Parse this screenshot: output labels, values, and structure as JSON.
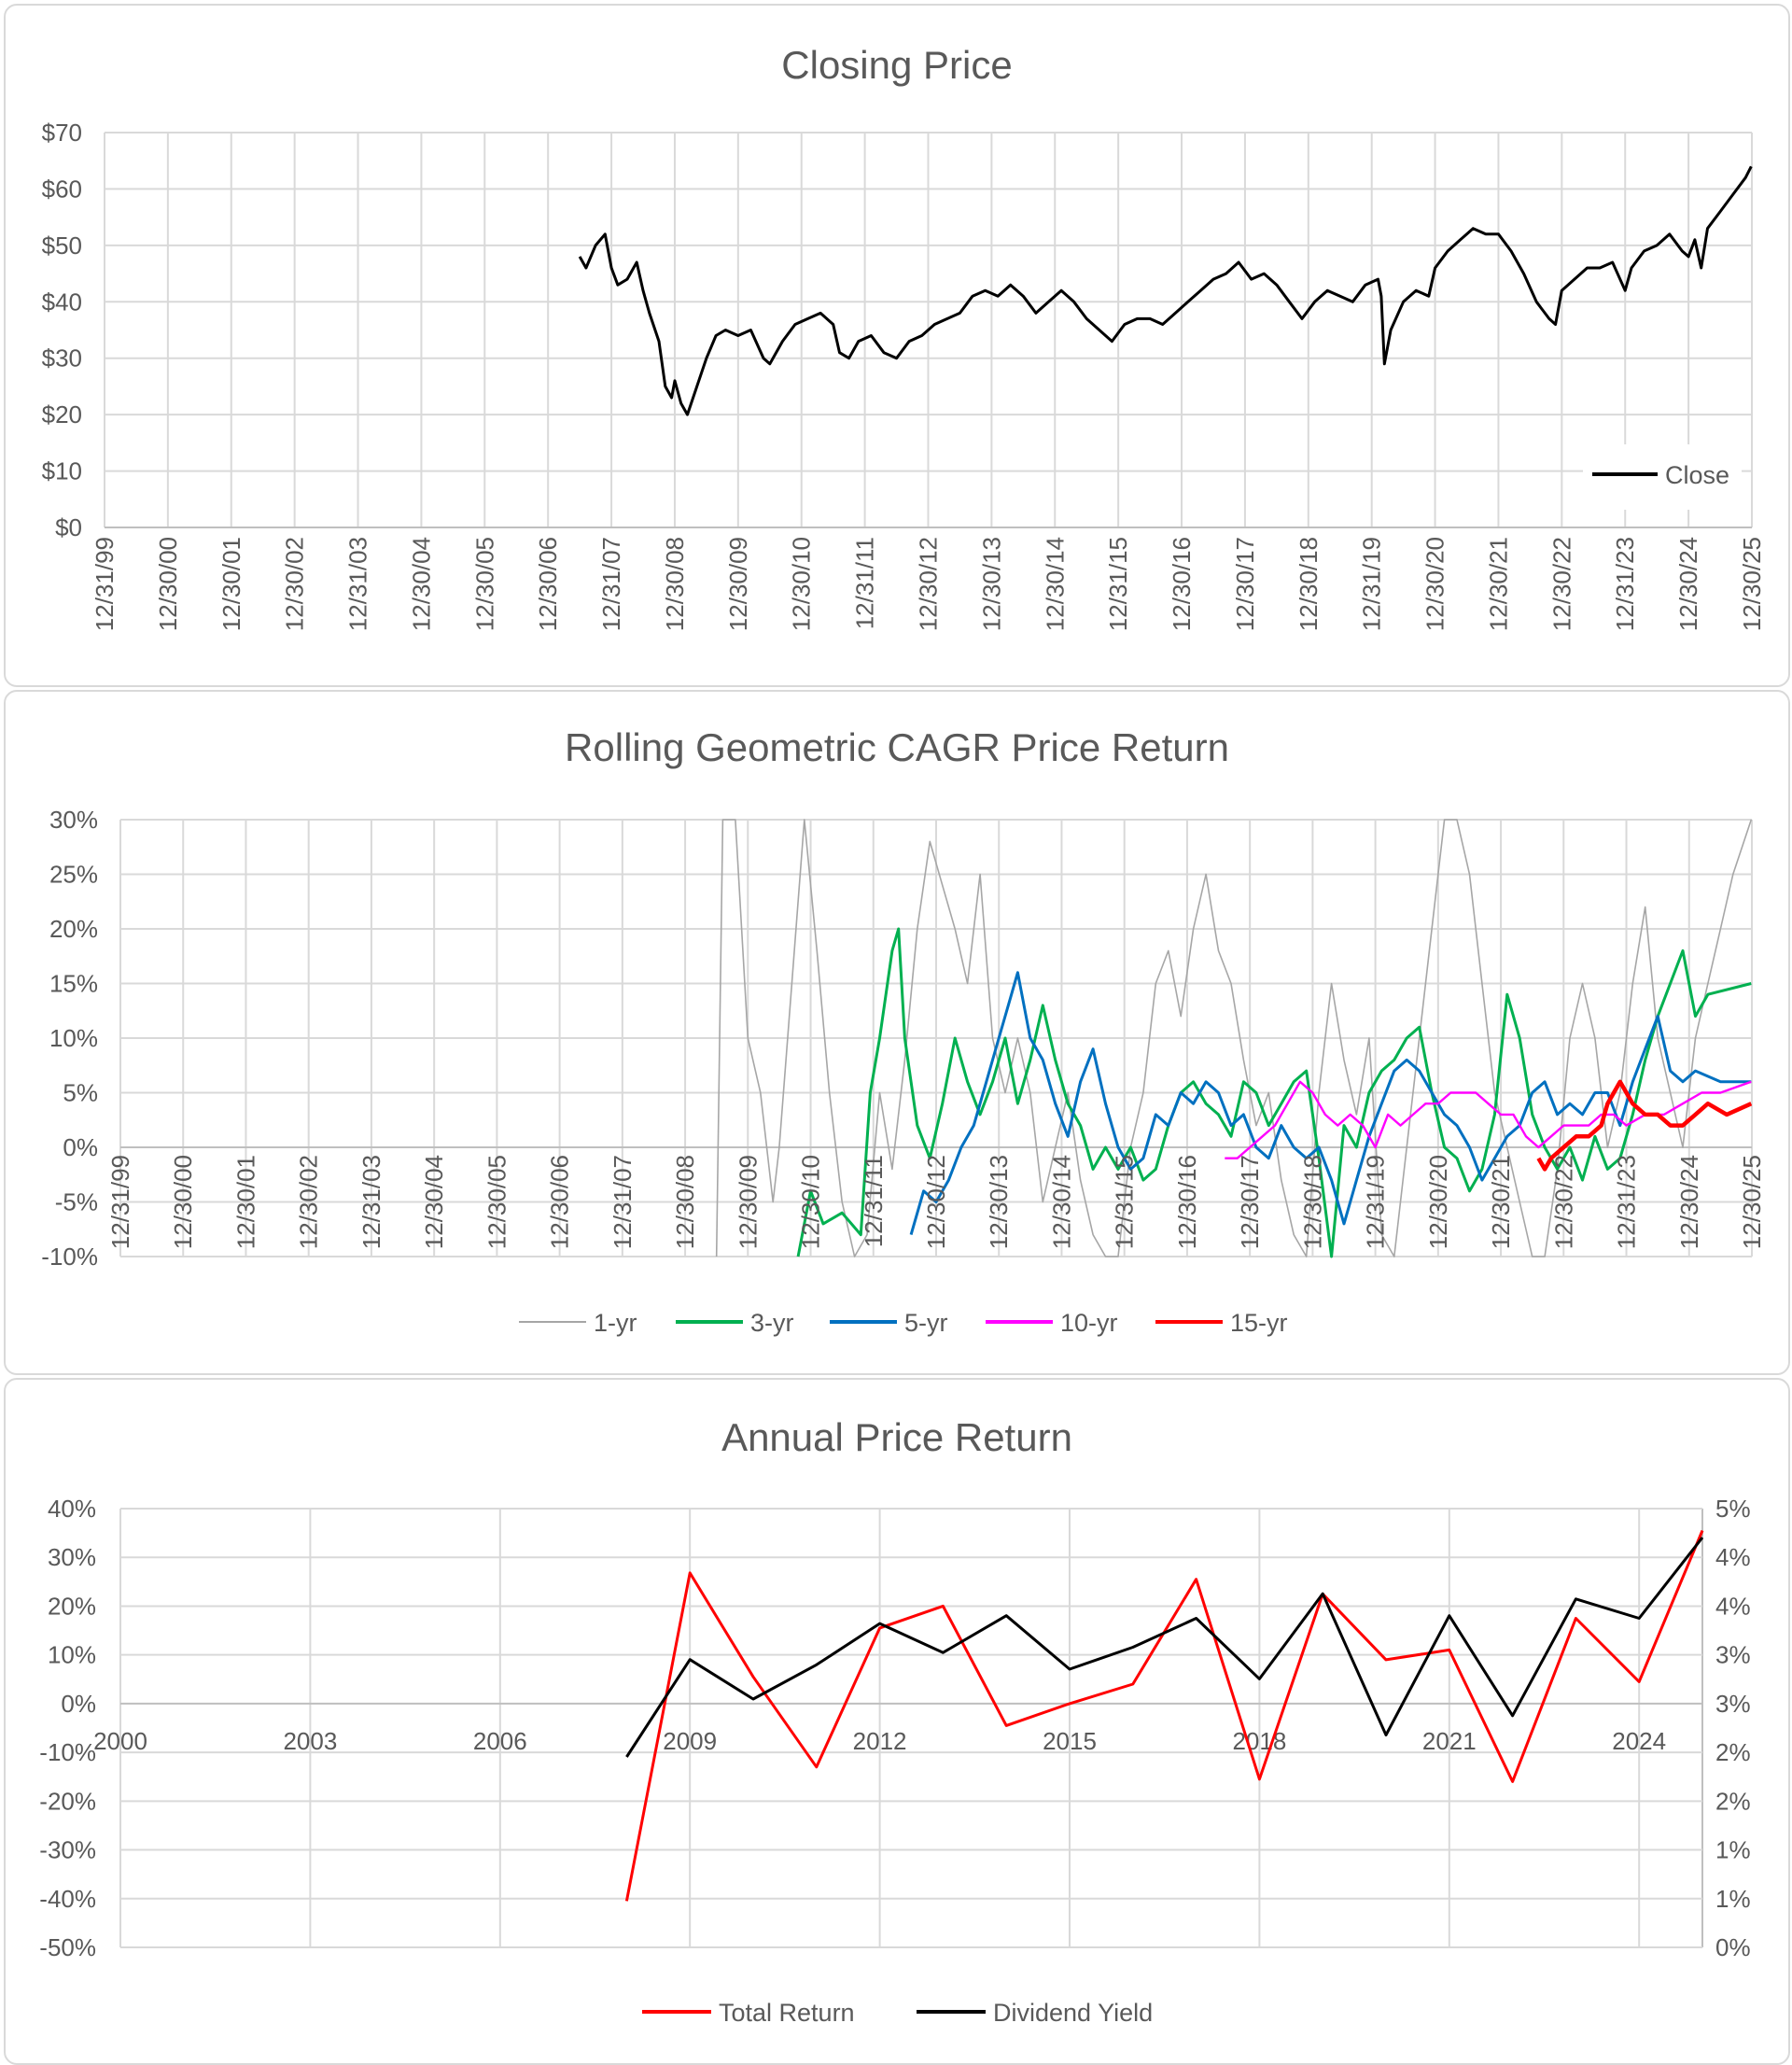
{
  "chart_data": [
    {
      "type": "line",
      "title": "Closing Price",
      "xlabel": "",
      "ylabel": "",
      "xlim": [
        "12/31/99",
        "12/30/25"
      ],
      "x_tick_labels": [
        "12/31/99",
        "12/30/00",
        "12/30/01",
        "12/30/02",
        "12/31/03",
        "12/30/04",
        "12/30/05",
        "12/30/06",
        "12/31/07",
        "12/30/08",
        "12/30/09",
        "12/30/10",
        "12/31/11",
        "12/30/12",
        "12/30/13",
        "12/30/14",
        "12/31/15",
        "12/30/16",
        "12/30/17",
        "12/30/18",
        "12/31/19",
        "12/30/20",
        "12/30/21",
        "12/30/22",
        "12/31/23",
        "12/30/24",
        "12/30/25"
      ],
      "ylim": [
        0,
        70
      ],
      "y_tick_labels": [
        "$0",
        "$10",
        "$20",
        "$30",
        "$40",
        "$50",
        "$60",
        "$70"
      ],
      "grid": true,
      "legend": "bottom-right",
      "series": [
        {
          "name": "Close",
          "color": "#000000",
          "x": [
            2007.5,
            2007.6,
            2007.75,
            2007.9,
            2008.0,
            2008.1,
            2008.25,
            2008.4,
            2008.5,
            2008.6,
            2008.75,
            2008.85,
            2008.95,
            2009.0,
            2009.1,
            2009.2,
            2009.35,
            2009.5,
            2009.65,
            2009.8,
            2010.0,
            2010.2,
            2010.4,
            2010.5,
            2010.7,
            2010.9,
            2011.1,
            2011.3,
            2011.5,
            2011.6,
            2011.75,
            2011.9,
            2012.1,
            2012.3,
            2012.5,
            2012.7,
            2012.9,
            2013.1,
            2013.3,
            2013.5,
            2013.7,
            2013.9,
            2014.1,
            2014.3,
            2014.5,
            2014.7,
            2014.9,
            2015.1,
            2015.3,
            2015.5,
            2015.7,
            2015.9,
            2016.1,
            2016.3,
            2016.5,
            2016.7,
            2016.9,
            2017.1,
            2017.3,
            2017.5,
            2017.7,
            2017.9,
            2018.1,
            2018.3,
            2018.5,
            2018.7,
            2018.9,
            2019.1,
            2019.3,
            2019.5,
            2019.7,
            2019.9,
            2020.1,
            2020.15,
            2020.2,
            2020.3,
            2020.5,
            2020.7,
            2020.9,
            2021.0,
            2021.2,
            2021.4,
            2021.6,
            2021.8,
            2022.0,
            2022.2,
            2022.4,
            2022.6,
            2022.8,
            2022.9,
            2023.0,
            2023.2,
            2023.4,
            2023.6,
            2023.8,
            2024.0,
            2024.1,
            2024.3,
            2024.5,
            2024.7,
            2024.9,
            2025.0,
            2025.1,
            2025.2,
            2025.3,
            2025.5,
            2025.7,
            2025.9,
            2025.99
          ],
          "y": [
            48,
            46,
            50,
            52,
            46,
            43,
            44,
            47,
            42,
            38,
            33,
            25,
            23,
            26,
            22,
            20,
            25,
            30,
            34,
            35,
            34,
            35,
            30,
            29,
            33,
            36,
            37,
            38,
            36,
            31,
            30,
            33,
            34,
            31,
            30,
            33,
            34,
            36,
            37,
            38,
            41,
            42,
            41,
            43,
            41,
            38,
            40,
            42,
            40,
            37,
            35,
            33,
            36,
            37,
            37,
            36,
            38,
            40,
            42,
            44,
            45,
            47,
            44,
            45,
            43,
            40,
            37,
            40,
            42,
            41,
            40,
            43,
            44,
            41,
            29,
            35,
            40,
            42,
            41,
            46,
            49,
            51,
            53,
            52,
            52,
            49,
            45,
            40,
            37,
            36,
            42,
            44,
            46,
            46,
            47,
            42,
            46,
            49,
            50,
            52,
            49,
            48,
            51,
            46,
            53,
            56,
            59,
            62,
            64
          ]
        }
      ]
    },
    {
      "type": "line",
      "title": "Rolling Geometric CAGR Price Return",
      "xlabel": "",
      "ylabel": "",
      "xlim": [
        "12/31/99",
        "12/30/25"
      ],
      "x_tick_labels": [
        "12/31/99",
        "12/30/00",
        "12/30/01",
        "12/30/02",
        "12/31/03",
        "12/30/04",
        "12/30/05",
        "12/30/06",
        "12/31/07",
        "12/30/08",
        "12/30/09",
        "12/30/10",
        "12/31/11",
        "12/30/12",
        "12/30/13",
        "12/30/14",
        "12/31/15",
        "12/30/16",
        "12/30/17",
        "12/30/18",
        "12/31/19",
        "12/30/20",
        "12/30/21",
        "12/30/22",
        "12/31/23",
        "12/30/24",
        "12/30/25"
      ],
      "ylim": [
        -10,
        30
      ],
      "y_tick_labels": [
        "-10%",
        "-5%",
        "0%",
        "5%",
        "10%",
        "15%",
        "20%",
        "25%",
        "30%"
      ],
      "grid": true,
      "legend": "bottom",
      "series": [
        {
          "name": "1-yr",
          "color": "#a6a6a6",
          "x": [
            2009.5,
            2009.6,
            2009.8,
            2009.9,
            2010.0,
            2010.2,
            2010.4,
            2010.5,
            2010.7,
            2010.9,
            2011.1,
            2011.3,
            2011.5,
            2011.7,
            2011.9,
            2012.1,
            2012.3,
            2012.5,
            2012.7,
            2012.9,
            2013.1,
            2013.3,
            2013.5,
            2013.7,
            2013.9,
            2014.1,
            2014.3,
            2014.5,
            2014.7,
            2014.9,
            2015.1,
            2015.3,
            2015.5,
            2015.7,
            2015.9,
            2016.1,
            2016.3,
            2016.5,
            2016.7,
            2016.9,
            2017.1,
            2017.3,
            2017.5,
            2017.7,
            2017.9,
            2018.1,
            2018.3,
            2018.5,
            2018.7,
            2018.9,
            2019.1,
            2019.3,
            2019.5,
            2019.7,
            2019.9,
            2020.1,
            2020.3,
            2020.5,
            2020.7,
            2020.9,
            2021.1,
            2021.3,
            2021.5,
            2021.7,
            2021.9,
            2022.1,
            2022.3,
            2022.5,
            2022.7,
            2022.9,
            2023.1,
            2023.3,
            2023.5,
            2023.7,
            2023.9,
            2024.1,
            2024.3,
            2024.5,
            2024.7,
            2024.9,
            2025.1,
            2025.3,
            2025.5,
            2025.7,
            2025.99
          ],
          "y": [
            -10,
            30,
            30,
            20,
            10,
            5,
            -5,
            0,
            15,
            30,
            18,
            5,
            -5,
            -10,
            -8,
            5,
            -2,
            8,
            20,
            28,
            24,
            20,
            15,
            25,
            10,
            5,
            10,
            5,
            -5,
            0,
            5,
            -3,
            -8,
            -10,
            -10,
            0,
            5,
            15,
            18,
            12,
            20,
            25,
            18,
            15,
            8,
            2,
            5,
            -3,
            -8,
            -10,
            5,
            15,
            8,
            3,
            10,
            -8,
            -10,
            0,
            10,
            20,
            30,
            30,
            25,
            15,
            5,
            0,
            -5,
            -10,
            -10,
            -2,
            10,
            15,
            10,
            0,
            5,
            15,
            22,
            10,
            5,
            0,
            10,
            15,
            20,
            25,
            30
          ]
        },
        {
          "name": "3-yr",
          "color": "#00b050",
          "x": [
            2010.8,
            2011.0,
            2011.2,
            2011.5,
            2011.8,
            2011.95,
            2012.1,
            2012.3,
            2012.4,
            2012.5,
            2012.7,
            2012.9,
            2013.1,
            2013.3,
            2013.5,
            2013.7,
            2013.9,
            2014.1,
            2014.3,
            2014.5,
            2014.7,
            2014.9,
            2015.1,
            2015.3,
            2015.5,
            2015.7,
            2015.9,
            2016.1,
            2016.3,
            2016.5,
            2016.7,
            2016.9,
            2017.1,
            2017.3,
            2017.5,
            2017.7,
            2017.9,
            2018.1,
            2018.3,
            2018.5,
            2018.7,
            2018.9,
            2019.1,
            2019.3,
            2019.5,
            2019.7,
            2019.9,
            2020.1,
            2020.3,
            2020.5,
            2020.7,
            2020.9,
            2021.1,
            2021.3,
            2021.5,
            2021.7,
            2021.9,
            2022.1,
            2022.3,
            2022.5,
            2022.7,
            2022.9,
            2023.1,
            2023.3,
            2023.5,
            2023.7,
            2023.9,
            2024.1,
            2024.3,
            2024.5,
            2024.7,
            2024.9,
            2025.1,
            2025.3,
            2025.99
          ],
          "y": [
            -10,
            -4,
            -7,
            -6,
            -8,
            5,
            10,
            18,
            20,
            10,
            2,
            -1,
            4,
            10,
            6,
            3,
            6,
            10,
            4,
            8,
            13,
            8,
            4,
            2,
            -2,
            0,
            -2,
            0,
            -3,
            -2,
            2,
            5,
            6,
            4,
            3,
            1,
            6,
            5,
            2,
            4,
            6,
            7,
            -1,
            -10,
            2,
            0,
            5,
            7,
            8,
            10,
            11,
            5,
            0,
            -1,
            -4,
            -2,
            3,
            14,
            10,
            3,
            0,
            -2,
            0,
            -3,
            1,
            -2,
            -1,
            3,
            8,
            12,
            15,
            18,
            12,
            14,
            15
          ]
        },
        {
          "name": "5-yr",
          "color": "#0070c0",
          "x": [
            2012.6,
            2012.8,
            2013.0,
            2013.2,
            2013.4,
            2013.6,
            2013.8,
            2014.0,
            2014.2,
            2014.3,
            2014.5,
            2014.7,
            2014.9,
            2015.1,
            2015.3,
            2015.5,
            2015.7,
            2015.9,
            2016.1,
            2016.3,
            2016.5,
            2016.7,
            2016.9,
            2017.1,
            2017.3,
            2017.5,
            2017.7,
            2017.9,
            2018.1,
            2018.3,
            2018.5,
            2018.7,
            2018.9,
            2019.1,
            2019.3,
            2019.5,
            2019.7,
            2019.9,
            2020.1,
            2020.3,
            2020.5,
            2020.7,
            2020.9,
            2021.1,
            2021.3,
            2021.5,
            2021.7,
            2021.9,
            2022.1,
            2022.3,
            2022.5,
            2022.7,
            2022.9,
            2023.1,
            2023.3,
            2023.5,
            2023.7,
            2023.9,
            2024.1,
            2024.3,
            2024.5,
            2024.7,
            2024.9,
            2025.1,
            2025.5,
            2025.99
          ],
          "y": [
            -8,
            -4,
            -5,
            -3,
            0,
            2,
            6,
            10,
            14,
            16,
            10,
            8,
            4,
            1,
            6,
            9,
            4,
            0,
            -2,
            -1,
            3,
            2,
            5,
            4,
            6,
            5,
            2,
            3,
            0,
            -1,
            2,
            0,
            -1,
            0,
            -3,
            -7,
            -3,
            1,
            4,
            7,
            8,
            7,
            5,
            3,
            2,
            0,
            -3,
            -1,
            1,
            2,
            5,
            6,
            3,
            4,
            3,
            5,
            5,
            2,
            6,
            9,
            12,
            7,
            6,
            7,
            6,
            6
          ]
        },
        {
          "name": "10-yr",
          "color": "#ff00ff",
          "x": [
            2017.6,
            2017.8,
            2018.0,
            2018.2,
            2018.4,
            2018.6,
            2018.8,
            2019.0,
            2019.2,
            2019.4,
            2019.6,
            2019.8,
            2020.0,
            2020.2,
            2020.4,
            2020.6,
            2020.8,
            2021.0,
            2021.2,
            2021.4,
            2021.6,
            2021.8,
            2022.0,
            2022.2,
            2022.4,
            2022.6,
            2022.8,
            2023.0,
            2023.2,
            2023.4,
            2023.6,
            2023.8,
            2024.0,
            2024.3,
            2024.6,
            2024.9,
            2025.2,
            2025.5,
            2025.99
          ],
          "y": [
            -1,
            -1,
            0,
            1,
            2,
            4,
            6,
            5,
            3,
            2,
            3,
            2,
            0,
            3,
            2,
            3,
            4,
            4,
            5,
            5,
            5,
            4,
            3,
            3,
            1,
            0,
            1,
            2,
            2,
            2,
            3,
            3,
            2,
            3,
            3,
            4,
            5,
            5,
            6
          ]
        },
        {
          "name": "15-yr",
          "color": "#ff0000",
          "x": [
            2022.6,
            2022.7,
            2022.8,
            2023.0,
            2023.2,
            2023.4,
            2023.6,
            2023.7,
            2023.9,
            2024.1,
            2024.3,
            2024.5,
            2024.7,
            2024.9,
            2025.1,
            2025.3,
            2025.6,
            2025.99
          ],
          "y": [
            -1,
            -2,
            -1,
            0,
            1,
            1,
            2,
            4,
            6,
            4,
            3,
            3,
            2,
            2,
            3,
            4,
            3,
            4
          ]
        }
      ]
    },
    {
      "type": "line",
      "title": "Annual Price Return",
      "xlabel": "",
      "ylabel": "",
      "xlim": [
        2000,
        2025
      ],
      "x_tick_labels": [
        "2000",
        "2003",
        "2006",
        "2009",
        "2012",
        "2015",
        "2018",
        "2021",
        "2024"
      ],
      "ylim": [
        -50,
        40
      ],
      "y_tick_labels": [
        "-50%",
        "-40%",
        "-30%",
        "-20%",
        "-10%",
        "0%",
        "10%",
        "20%",
        "30%",
        "40%"
      ],
      "y2lim": [
        0,
        5
      ],
      "y2_tick_labels": [
        "0%",
        "1%",
        "1%",
        "2%",
        "2%",
        "3%",
        "3%",
        "4%",
        "4%",
        "5%"
      ],
      "grid": true,
      "legend": "bottom",
      "x": [
        2008,
        2009,
        2010,
        2011,
        2012,
        2013,
        2014,
        2015,
        2016,
        2017,
        2018,
        2019,
        2020,
        2021,
        2022,
        2023,
        2024,
        2025
      ],
      "series": [
        {
          "name": "Total Return",
          "color": "#ff0000",
          "axis": "left",
          "values": [
            -40.5,
            26.8,
            5.5,
            -13,
            15.5,
            20,
            -4.5,
            0,
            4,
            25.5,
            -15.5,
            22.5,
            9,
            11,
            -16,
            17.5,
            4.5,
            35.5
          ]
        },
        {
          "name": "Dividend Yield",
          "color": "#000000",
          "axis": "right",
          "values": [
            2.17,
            3.28,
            2.83,
            3.22,
            3.69,
            3.36,
            3.78,
            3.17,
            3.42,
            3.75,
            3.06,
            4.03,
            2.42,
            3.78,
            2.64,
            3.97,
            3.75,
            4.67
          ]
        }
      ]
    }
  ]
}
